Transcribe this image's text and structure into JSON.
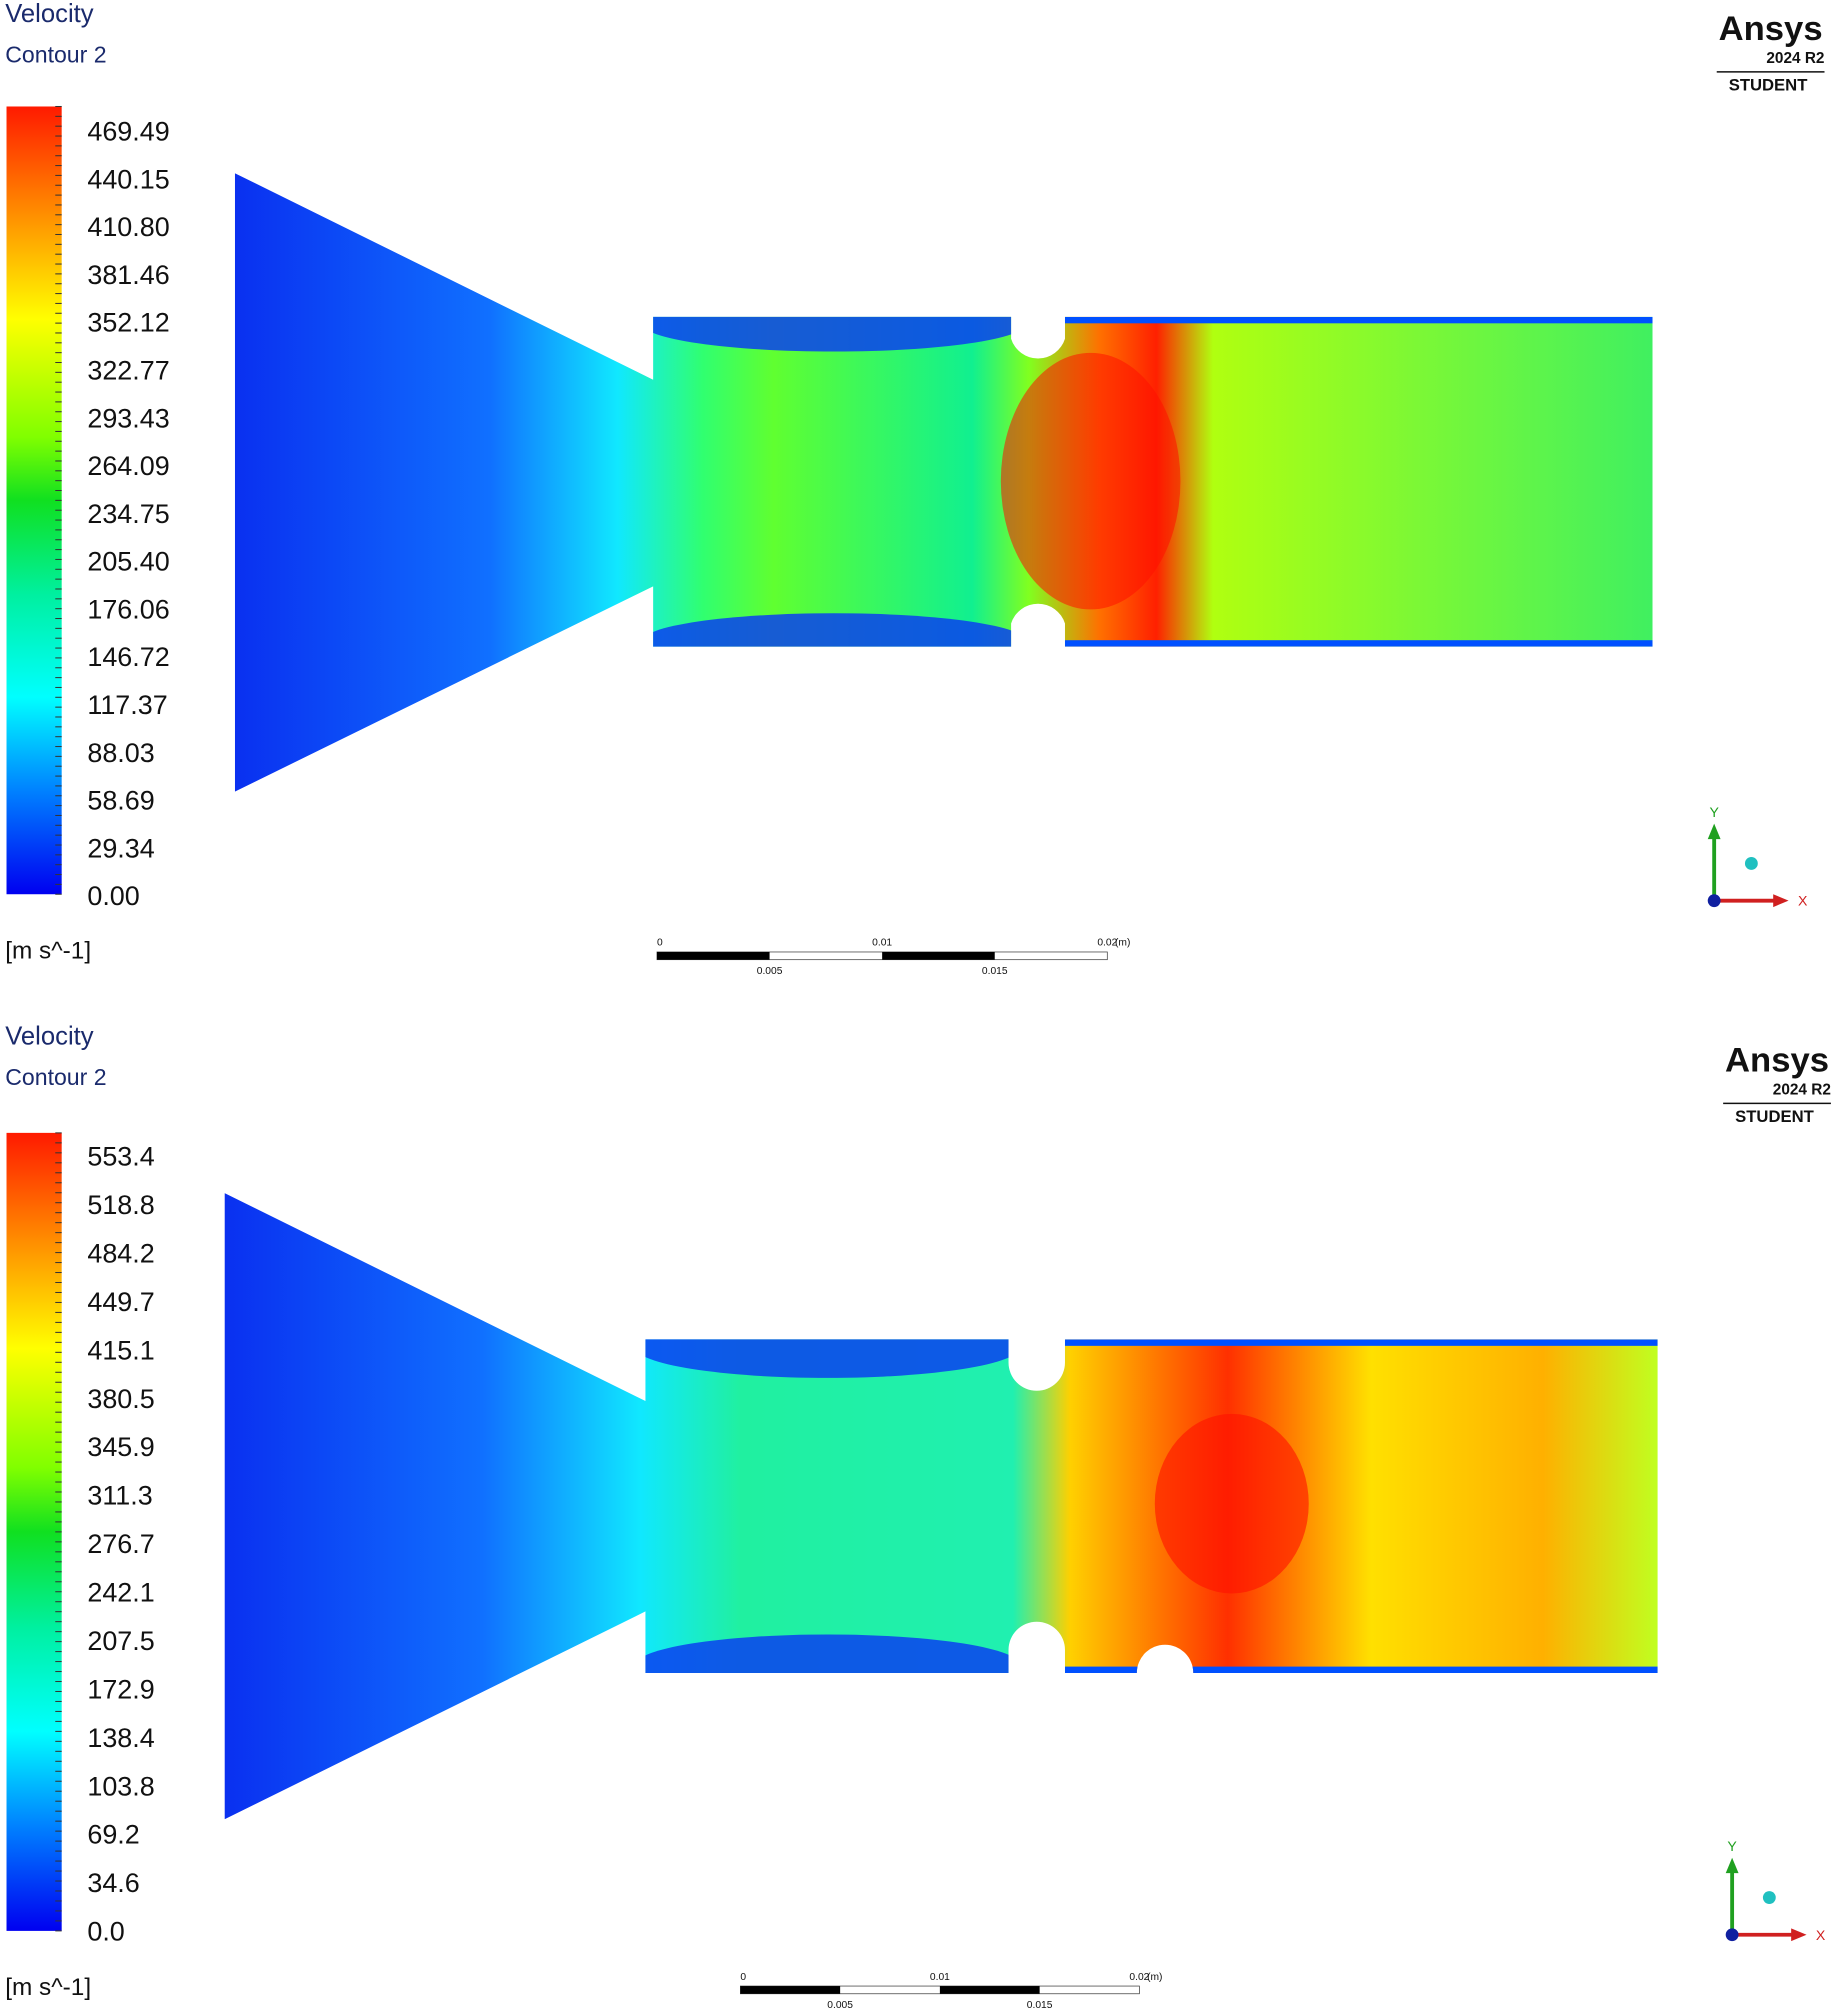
{
  "panels": [
    {
      "title": "Velocity",
      "subtitle": "Contour 2",
      "legend": [
        "469.49",
        "440.15",
        "410.80",
        "381.46",
        "352.12",
        "322.77",
        "293.43",
        "264.09",
        "234.75",
        "205.40",
        "176.06",
        "146.72",
        "117.37",
        "88.03",
        "58.69",
        "29.34",
        "0.00"
      ],
      "unit": "[m s^-1]",
      "logo": {
        "brand": "Ansys",
        "version": "2024 R2",
        "edition": "STUDENT"
      },
      "scale_bar": {
        "ticks": [
          "0",
          "0.01",
          "0.02"
        ],
        "unit": "(m)",
        "minor_ticks": [
          "0.005",
          "0.015"
        ]
      },
      "axes": {
        "y": "Y",
        "x": "X"
      }
    },
    {
      "title": "Velocity",
      "subtitle": "Contour 2",
      "legend": [
        "553.4",
        "518.8",
        "484.2",
        "449.7",
        "415.1",
        "380.5",
        "345.9",
        "311.3",
        "276.7",
        "242.1",
        "207.5",
        "172.9",
        "138.4",
        "103.8",
        "69.2",
        "34.6",
        "0.0"
      ],
      "unit": "[m s^-1]",
      "logo": {
        "brand": "Ansys",
        "version": "2024 R2",
        "edition": "STUDENT"
      },
      "scale_bar": {
        "ticks": [
          "0",
          "0.01",
          "0.02"
        ],
        "unit": "(m)",
        "minor_ticks": [
          "0.005",
          "0.015"
        ]
      },
      "axes": {
        "y": "Y",
        "x": "X"
      }
    }
  ]
}
